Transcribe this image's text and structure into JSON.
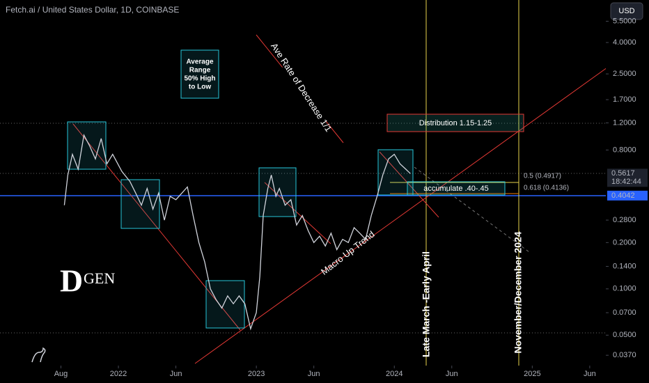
{
  "chart_data": {
    "type": "line",
    "title": "Fetch.ai / United States Dollar, 1D, COINBASE",
    "currency": "USD",
    "log_scale": true,
    "color": "#d1d4dc",
    "x": [
      7.3,
      7.6,
      8.0,
      8.5,
      9.0,
      9.5,
      10,
      10.5,
      11,
      11.5,
      12.3,
      13,
      13.5,
      14,
      14.5,
      15,
      15.5,
      16,
      16.5,
      17,
      18,
      18.5,
      19,
      19.5,
      20,
      20.5,
      21,
      21.5,
      22,
      22.5,
      23,
      23.5,
      24,
      24.3,
      24.6,
      25,
      25.3,
      25.7,
      26,
      26.5,
      27,
      27.5,
      28,
      28.5,
      29,
      29.5,
      30,
      30.5,
      31,
      31.5,
      32,
      32.5,
      33,
      33.5,
      34,
      34.5,
      35,
      35.5,
      36,
      36.5,
      37,
      37.4
    ],
    "values": [
      0.35,
      0.55,
      0.75,
      0.6,
      1.0,
      0.85,
      0.7,
      0.95,
      0.65,
      0.75,
      0.58,
      0.5,
      0.42,
      0.35,
      0.45,
      0.33,
      0.42,
      0.28,
      0.4,
      0.38,
      0.46,
      0.3,
      0.2,
      0.15,
      0.1,
      0.085,
      0.075,
      0.09,
      0.08,
      0.09,
      0.08,
      0.055,
      0.07,
      0.12,
      0.3,
      0.45,
      0.55,
      0.4,
      0.45,
      0.35,
      0.38,
      0.26,
      0.3,
      0.24,
      0.2,
      0.22,
      0.19,
      0.23,
      0.18,
      0.21,
      0.2,
      0.25,
      0.23,
      0.21,
      0.3,
      0.4,
      0.55,
      0.7,
      0.75,
      0.65,
      0.6,
      0.5617
    ],
    "xlim": [
      1.7,
      54.4
    ],
    "xticks": [
      {
        "value": 7,
        "label": "Aug"
      },
      {
        "value": 12,
        "label": "2022"
      },
      {
        "value": 17,
        "label": "Jun"
      },
      {
        "value": 24,
        "label": "2023"
      },
      {
        "value": 29,
        "label": "Jun"
      },
      {
        "value": 36,
        "label": "2024"
      },
      {
        "value": 41,
        "label": "Jun"
      },
      {
        "value": 48,
        "label": "2025"
      },
      {
        "value": 53,
        "label": "Jun"
      }
    ],
    "ylim": [
      0.0317,
      7.56
    ],
    "yticks": [
      {
        "value": 5.5,
        "label": "5.5000"
      },
      {
        "value": 4,
        "label": "4.0000"
      },
      {
        "value": 2.5,
        "label": "2.5000"
      },
      {
        "value": 1.7,
        "label": "1.7000"
      },
      {
        "value": 1.2,
        "label": "1.2000"
      },
      {
        "value": 0.8,
        "label": "0.8000"
      },
      {
        "value": 0.28,
        "label": "0.2800"
      },
      {
        "value": 0.2,
        "label": "0.2000"
      },
      {
        "value": 0.14,
        "label": "0.1400"
      },
      {
        "value": 0.1,
        "label": "0.1000"
      },
      {
        "value": 0.07,
        "label": "0.0700"
      },
      {
        "value": 0.05,
        "label": "0.0500"
      },
      {
        "value": 0.037,
        "label": "0.0370"
      }
    ],
    "price_labels": [
      {
        "value": 0.5617,
        "label": "0.5617",
        "color": "#1e222d"
      },
      {
        "value": 0.4042,
        "label": "0.4042",
        "color": "#2962ff"
      }
    ],
    "countdown": "18:42:44",
    "annotations": {
      "average_range": [
        "Average",
        "Range",
        "50% High",
        "to Low"
      ],
      "rate": "Ave Rate of Decrease 1/1",
      "distribution": "Distribution 1.15-1.25",
      "accumulate": "accumulate .40-.45",
      "fib_05": "0.5 (0.4917)",
      "fib_0618": "0.618 (0.4136)",
      "macro": "Macro Up Trend",
      "late_march": "Late March -Early April",
      "nov_dec": "November/December 2024"
    },
    "logo": [
      "D",
      "GEN"
    ]
  }
}
